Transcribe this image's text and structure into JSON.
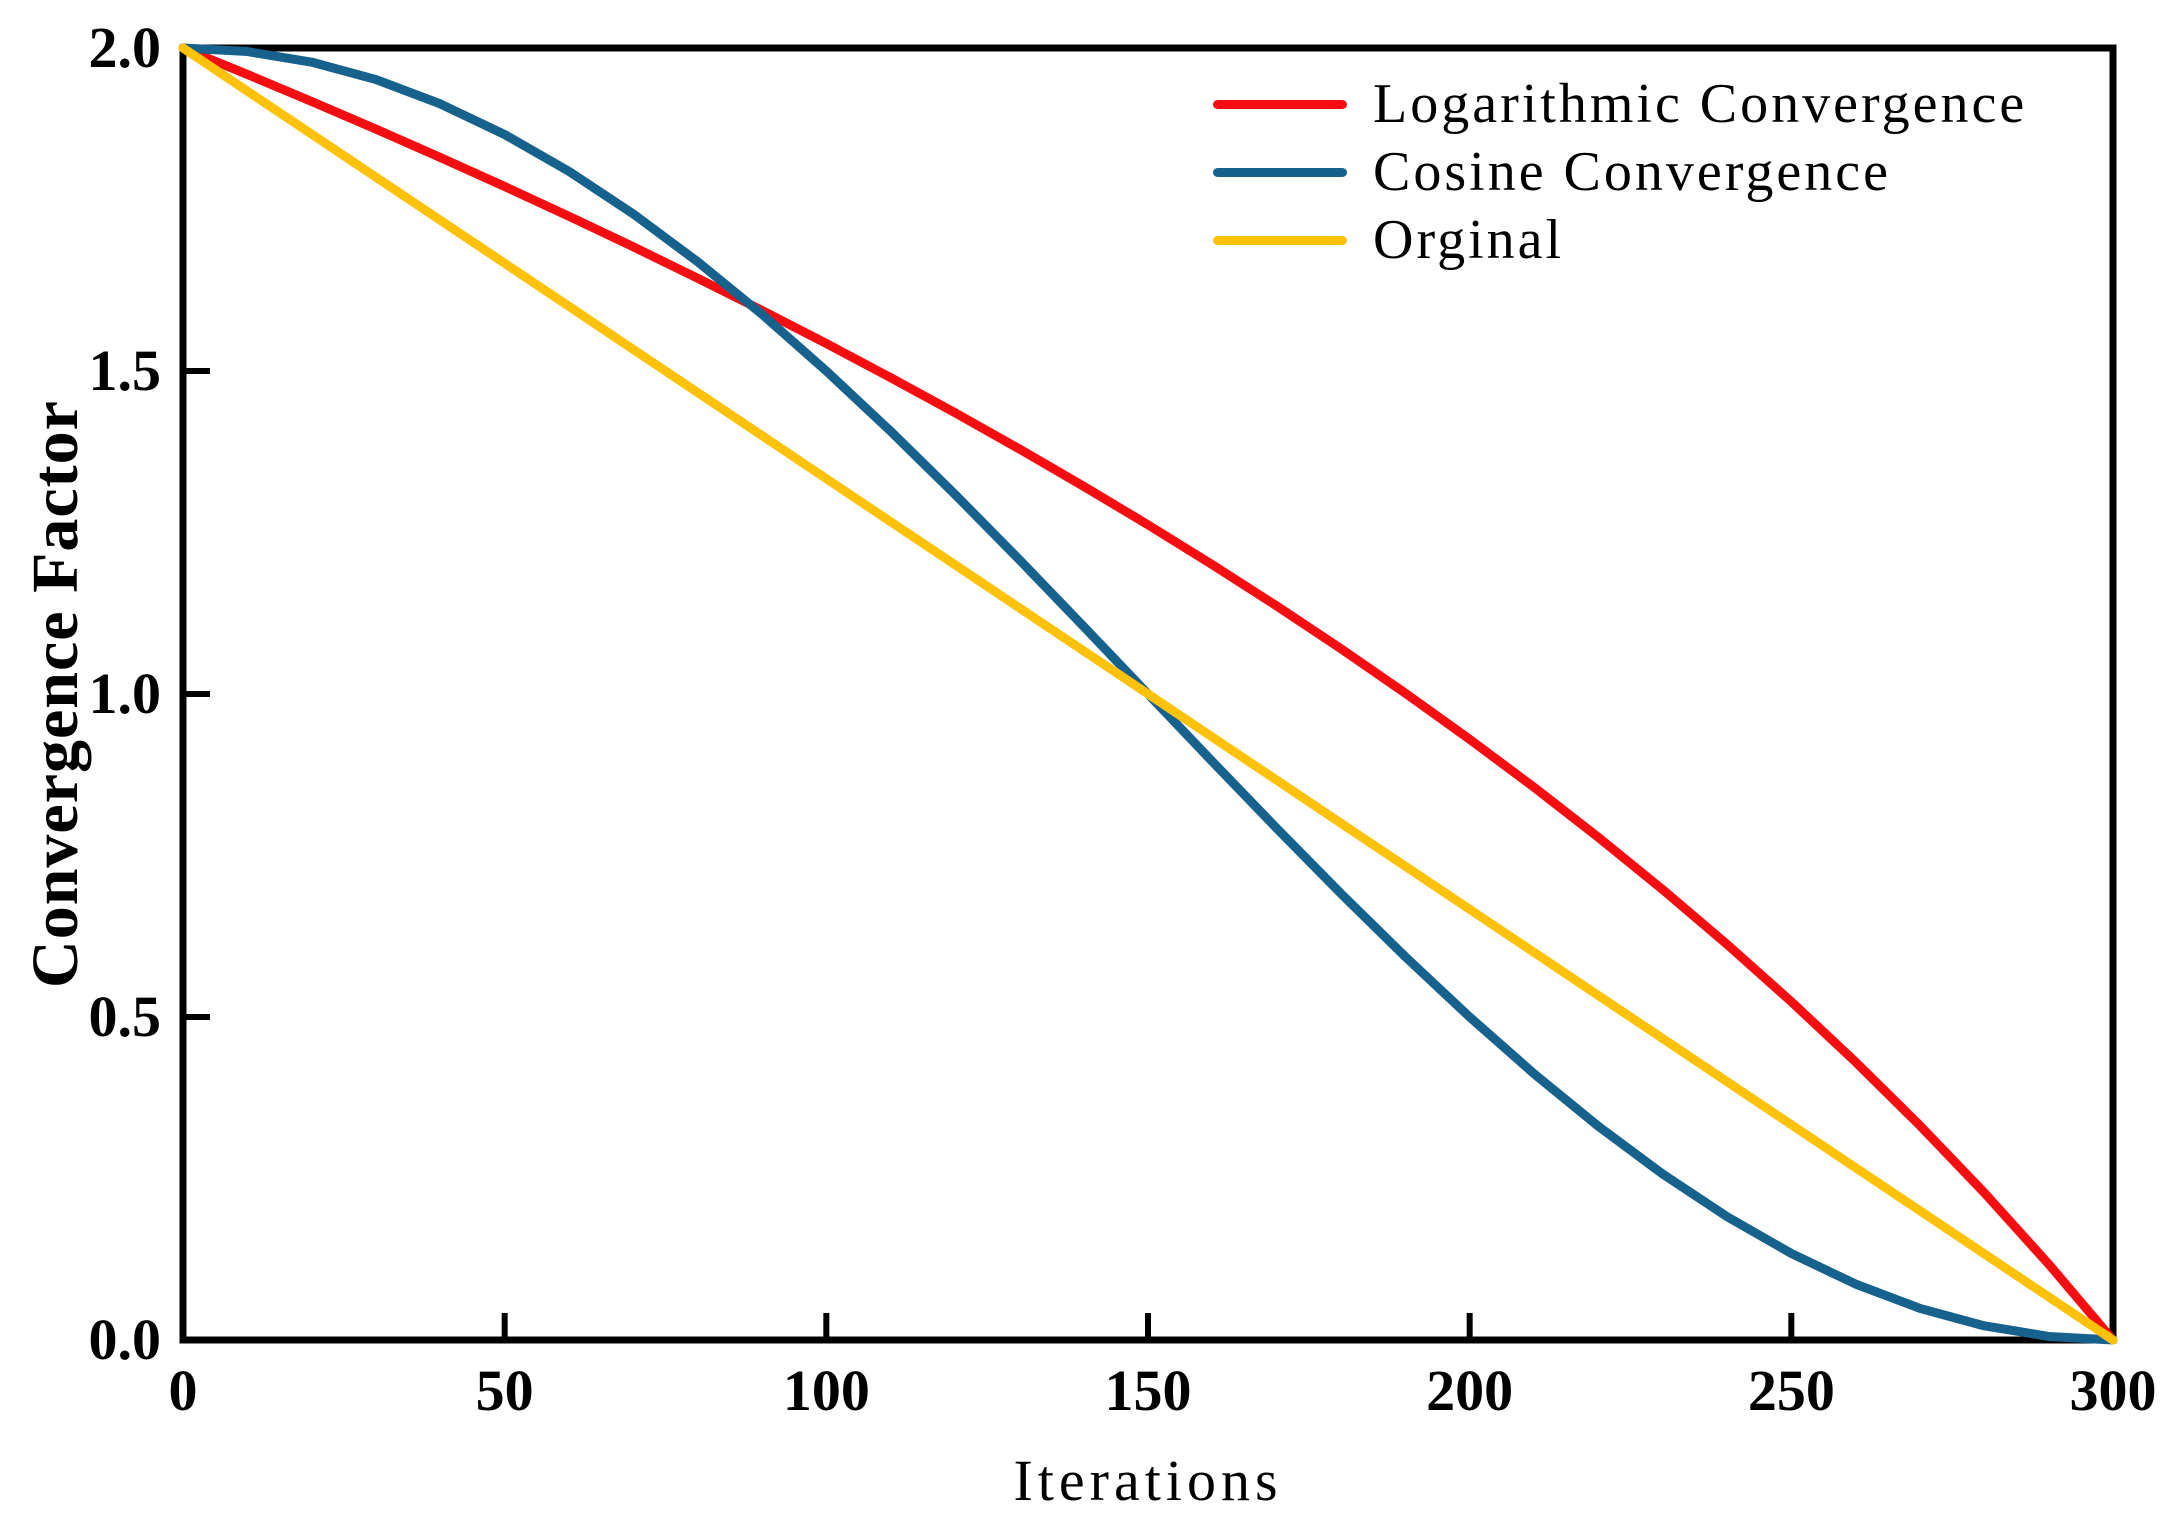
{
  "figure": {
    "background": "#ffffff",
    "axis_color": "#000000",
    "text_color": "#000000"
  },
  "chart_data": {
    "type": "line",
    "title": "",
    "xlabel": "Iterations",
    "ylabel": "Convergence Factor",
    "xlim": [
      0,
      300
    ],
    "ylim": [
      0.0,
      2.0
    ],
    "x_tick_values": [
      0,
      50,
      100,
      150,
      200,
      250,
      300
    ],
    "x_tick_labels": [
      "0",
      "50",
      "100",
      "150",
      "200",
      "250",
      "300"
    ],
    "y_tick_values": [
      0.0,
      0.5,
      1.0,
      1.5,
      2.0
    ],
    "y_tick_labels": [
      "0.0",
      "0.5",
      "1.0",
      "1.5",
      "2.0"
    ],
    "grid": false,
    "legend_position": "upper right",
    "x": [
      0,
      10,
      20,
      30,
      40,
      50,
      60,
      70,
      80,
      90,
      100,
      110,
      120,
      130,
      140,
      150,
      160,
      170,
      180,
      190,
      200,
      210,
      220,
      230,
      240,
      250,
      260,
      270,
      280,
      290,
      300
    ],
    "series": [
      {
        "name": "Logarithmic Convergence",
        "color": "#f40e12",
        "values": [
          2.0,
          1.9591,
          1.9172,
          1.8744,
          1.8305,
          1.7856,
          1.7395,
          1.6922,
          1.6436,
          1.5938,
          1.5425,
          1.4897,
          1.4354,
          1.3793,
          1.3215,
          1.2619,
          1.2001,
          1.1363,
          1.0701,
          1.0013,
          0.9299,
          0.8556,
          0.7781,
          0.6972,
          0.6125,
          0.5237,
          0.4303,
          0.3319,
          0.2279,
          0.1175,
          0.0
        ]
      },
      {
        "name": "Cosine Convergence",
        "color": "#17618d",
        "values": [
          2.0,
          1.9945,
          1.9781,
          1.9511,
          1.9135,
          1.866,
          1.809,
          1.7431,
          1.6691,
          1.5878,
          1.5,
          1.4067,
          1.309,
          1.2079,
          1.1045,
          1.0,
          0.8955,
          0.7921,
          0.691,
          0.5933,
          0.5,
          0.4122,
          0.3309,
          0.2569,
          0.191,
          0.134,
          0.0865,
          0.0489,
          0.0219,
          0.0055,
          0.0
        ]
      },
      {
        "name": "Orginal",
        "color": "#fec20a",
        "values": [
          2.0,
          1.9333,
          1.8667,
          1.8,
          1.7333,
          1.6667,
          1.6,
          1.5333,
          1.4667,
          1.4,
          1.3333,
          1.2667,
          1.2,
          1.1333,
          1.0667,
          1.0,
          0.9333,
          0.8667,
          0.8,
          0.7333,
          0.6667,
          0.6,
          0.5333,
          0.4667,
          0.4,
          0.3333,
          0.2667,
          0.2,
          0.1333,
          0.0667,
          0.0
        ]
      }
    ]
  }
}
